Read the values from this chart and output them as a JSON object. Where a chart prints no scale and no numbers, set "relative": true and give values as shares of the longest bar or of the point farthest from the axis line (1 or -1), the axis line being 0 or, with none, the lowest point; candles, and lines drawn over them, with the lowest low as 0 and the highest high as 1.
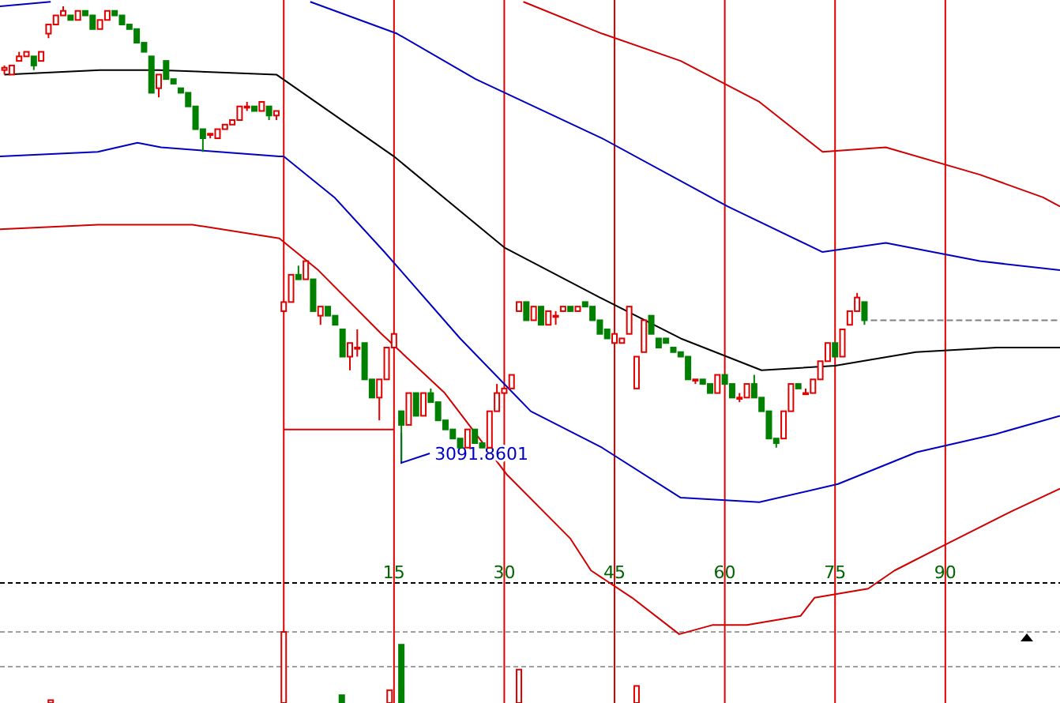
{
  "chart_data": [
    {
      "type": "candlestick",
      "relative": true,
      "xlim": [
        -38.6,
        105.6
      ],
      "xticks": [
        15,
        30,
        45,
        60,
        75,
        90
      ],
      "x": [
        -38,
        -37,
        -36,
        -35,
        -34,
        -33,
        -32,
        -31,
        -30,
        -29,
        -28,
        -27,
        -26,
        -25,
        -24,
        -23,
        -22,
        -21,
        -20,
        -19,
        -18,
        -17,
        -16,
        -15,
        -14,
        -13,
        -12,
        -11,
        -10,
        -9,
        -8,
        -7,
        -6,
        -5,
        -4,
        -3,
        -2,
        -1,
        0,
        1,
        2,
        3,
        4,
        5,
        6,
        7,
        8,
        9,
        10,
        11,
        12,
        13,
        14,
        15,
        16,
        17,
        18,
        19,
        20,
        21,
        22,
        23,
        24,
        25,
        26,
        27,
        28,
        29,
        30,
        31,
        32,
        33,
        34,
        35,
        36,
        37,
        38,
        39,
        40,
        41,
        42,
        43,
        44,
        45,
        46,
        47,
        48,
        49,
        50,
        51,
        52,
        53,
        54,
        55,
        56,
        57,
        58,
        59,
        60,
        61,
        62,
        63,
        64,
        65,
        66,
        67,
        68,
        69,
        70,
        71,
        72,
        73,
        74,
        75,
        76,
        77,
        78,
        79
      ],
      "ohlc": [
        [
          0.86,
          0.87,
          0.85,
          0.865
        ],
        [
          0.85,
          0.87,
          0.85,
          0.87
        ],
        [
          0.88,
          0.9,
          0.88,
          0.89
        ],
        [
          0.89,
          0.9,
          0.89,
          0.9
        ],
        [
          0.89,
          0.89,
          0.86,
          0.87
        ],
        [
          0.88,
          0.9,
          0.88,
          0.9
        ],
        [
          0.94,
          0.96,
          0.93,
          0.96
        ],
        [
          0.96,
          0.98,
          0.96,
          0.98
        ],
        [
          0.98,
          1.0,
          0.98,
          0.99
        ],
        [
          0.98,
          0.98,
          0.97,
          0.97
        ],
        [
          0.97,
          0.99,
          0.97,
          0.99
        ],
        [
          0.99,
          0.99,
          0.98,
          0.98
        ],
        [
          0.98,
          0.98,
          0.95,
          0.95
        ],
        [
          0.95,
          0.97,
          0.95,
          0.97
        ],
        [
          0.97,
          0.99,
          0.97,
          0.99
        ],
        [
          0.99,
          0.99,
          0.98,
          0.98
        ],
        [
          0.98,
          0.98,
          0.96,
          0.96
        ],
        [
          0.96,
          0.96,
          0.95,
          0.95
        ],
        [
          0.95,
          0.95,
          0.92,
          0.92
        ],
        [
          0.92,
          0.92,
          0.9,
          0.9
        ],
        [
          0.89,
          0.89,
          0.81,
          0.81
        ],
        [
          0.82,
          0.85,
          0.8,
          0.85
        ],
        [
          0.88,
          0.88,
          0.84,
          0.84
        ],
        [
          0.84,
          0.84,
          0.83,
          0.83
        ],
        [
          0.82,
          0.82,
          0.81,
          0.81
        ],
        [
          0.81,
          0.81,
          0.78,
          0.78
        ],
        [
          0.78,
          0.78,
          0.73,
          0.73
        ],
        [
          0.73,
          0.73,
          0.68,
          0.71
        ],
        [
          0.72,
          0.72,
          0.71,
          0.72
        ],
        [
          0.71,
          0.73,
          0.71,
          0.73
        ],
        [
          0.73,
          0.74,
          0.73,
          0.74
        ],
        [
          0.74,
          0.75,
          0.74,
          0.75
        ],
        [
          0.75,
          0.78,
          0.75,
          0.78
        ],
        [
          0.78,
          0.79,
          0.77,
          0.78
        ],
        [
          0.78,
          0.78,
          0.77,
          0.77
        ],
        [
          0.77,
          0.79,
          0.77,
          0.79
        ],
        [
          0.78,
          0.78,
          0.75,
          0.76
        ],
        [
          0.76,
          0.77,
          0.75,
          0.77
        ],
        [
          0.33,
          0.35,
          0.33,
          0.35
        ],
        [
          0.35,
          0.41,
          0.35,
          0.41
        ],
        [
          0.41,
          0.43,
          0.4,
          0.4
        ],
        [
          0.4,
          0.44,
          0.4,
          0.44
        ],
        [
          0.4,
          0.4,
          0.33,
          0.33
        ],
        [
          0.32,
          0.34,
          0.3,
          0.34
        ],
        [
          0.34,
          0.34,
          0.32,
          0.32
        ],
        [
          0.32,
          0.32,
          0.3,
          0.3
        ],
        [
          0.29,
          0.29,
          0.23,
          0.23
        ],
        [
          0.23,
          0.26,
          0.2,
          0.26
        ],
        [
          0.25,
          0.29,
          0.23,
          0.25
        ],
        [
          0.26,
          0.26,
          0.18,
          0.18
        ],
        [
          0.18,
          0.18,
          0.14,
          0.14
        ],
        [
          0.14,
          0.18,
          0.09,
          0.18
        ],
        [
          0.18,
          0.25,
          0.18,
          0.25
        ],
        [
          0.25,
          0.28,
          0.25,
          0.28
        ],
        [
          0.11,
          0.11,
          0,
          0.08
        ],
        [
          0.08,
          0.15,
          0.08,
          0.15
        ],
        [
          0.15,
          0.15,
          0.1,
          0.1
        ],
        [
          0.1,
          0.15,
          0.1,
          0.15
        ],
        [
          0.15,
          0.16,
          0.13,
          0.13
        ],
        [
          0.13,
          0.13,
          0.09,
          0.09
        ],
        [
          0.09,
          0.09,
          0.07,
          0.07
        ],
        [
          0.07,
          0.07,
          0.05,
          0.05
        ],
        [
          0.05,
          0.05,
          0.03,
          0.03
        ],
        [
          0.03,
          0.07,
          0.03,
          0.07
        ],
        [
          0.07,
          0.07,
          0.04,
          0.04
        ],
        [
          0.04,
          0.04,
          0.03,
          0.03
        ],
        [
          0.03,
          0.11,
          0.03,
          0.11
        ],
        [
          0.11,
          0.17,
          0.11,
          0.15
        ],
        [
          0.15,
          0.16,
          0.15,
          0.16
        ],
        [
          0.16,
          0.19,
          0.16,
          0.19
        ],
        [
          0.33,
          0.35,
          0.33,
          0.35
        ],
        [
          0.35,
          0.35,
          0.31,
          0.31
        ],
        [
          0.31,
          0.34,
          0.31,
          0.34
        ],
        [
          0.34,
          0.34,
          0.3,
          0.3
        ],
        [
          0.3,
          0.33,
          0.3,
          0.33
        ],
        [
          0.32,
          0.33,
          0.3,
          0.32
        ],
        [
          0.33,
          0.34,
          0.33,
          0.34
        ],
        [
          0.34,
          0.34,
          0.33,
          0.33
        ],
        [
          0.33,
          0.34,
          0.33,
          0.34
        ],
        [
          0.35,
          0.35,
          0.34,
          0.34
        ],
        [
          0.34,
          0.34,
          0.31,
          0.31
        ],
        [
          0.31,
          0.31,
          0.28,
          0.28
        ],
        [
          0.29,
          0.29,
          0.27,
          0.27
        ],
        [
          0.26,
          0.28,
          0.26,
          0.28
        ],
        [
          0.26,
          0.27,
          0.26,
          0.27
        ],
        [
          0.28,
          0.34,
          0.28,
          0.34
        ],
        [
          0.16,
          0.23,
          0.16,
          0.23
        ],
        [
          0.24,
          0.31,
          0.24,
          0.31
        ],
        [
          0.32,
          0.32,
          0.28,
          0.28
        ],
        [
          0.27,
          0.27,
          0.25,
          0.25
        ],
        [
          0.27,
          0.27,
          0.26,
          0.26
        ],
        [
          0.25,
          0.25,
          0.24,
          0.24
        ],
        [
          0.24,
          0.24,
          0.23,
          0.23
        ],
        [
          0.23,
          0.23,
          0.18,
          0.18
        ],
        [
          0.18,
          0.18,
          0.17,
          0.18
        ],
        [
          0.18,
          0.18,
          0.17,
          0.17
        ],
        [
          0.17,
          0.17,
          0.15,
          0.15
        ],
        [
          0.15,
          0.19,
          0.15,
          0.19
        ],
        [
          0.19,
          0.19,
          0.17,
          0.17
        ],
        [
          0.17,
          0.17,
          0.14,
          0.14
        ],
        [
          0.14,
          0.15,
          0.13,
          0.14
        ],
        [
          0.14,
          0.17,
          0.14,
          0.17
        ],
        [
          0.17,
          0.19,
          0.14,
          0.14
        ],
        [
          0.14,
          0.14,
          0.11,
          0.11
        ],
        [
          0.11,
          0.11,
          0.05,
          0.05
        ],
        [
          0.05,
          0.05,
          0.03,
          0.04
        ],
        [
          0.05,
          0.11,
          0.05,
          0.11
        ],
        [
          0.11,
          0.17,
          0.11,
          0.17
        ],
        [
          0.17,
          0.17,
          0.16,
          0.16
        ],
        [
          0.15,
          0.16,
          0.15,
          0.15
        ],
        [
          0.15,
          0.18,
          0.15,
          0.18
        ],
        [
          0.18,
          0.22,
          0.18,
          0.22
        ],
        [
          0.22,
          0.26,
          0.22,
          0.26
        ],
        [
          0.26,
          0.26,
          0.23,
          0.23
        ],
        [
          0.23,
          0.29,
          0.23,
          0.29
        ],
        [
          0.3,
          0.33,
          0.3,
          0.33
        ],
        [
          0.33,
          0.37,
          0.33,
          0.36
        ],
        [
          0.35,
          0.35,
          0.3,
          0.31
        ]
      ],
      "series": [
        {
          "type": "line",
          "color": "#000000",
          "x": [
            -38,
            -25,
            -17,
            -1,
            15,
            30,
            43,
            54,
            65,
            75,
            86,
            97,
            105.6
          ],
          "values": [
            0.85,
            0.86,
            0.86,
            0.85,
            0.67,
            0.47,
            0.36,
            0.27,
            0.2,
            0.21,
            0.24,
            0.25,
            0.25
          ]
        },
        {
          "type": "line",
          "color": "#0000c0",
          "x": [
            -38.6,
            -31.7,
            -31,
            3.6,
            15.4,
            26.1,
            43.3,
            60.4,
            73.3,
            81.9,
            94.7,
            105.6
          ],
          "values": [
            1.0,
            1.01,
            null,
            1.01,
            0.94,
            0.84,
            0.71,
            0.56,
            0.46,
            0.48,
            0.44,
            0.42
          ]
        },
        {
          "type": "line",
          "color": "#0000c0",
          "x": [
            -38.6,
            -25.3,
            -19.9,
            -16.7,
            -0.6,
            0,
            6.9,
            13.7,
            24,
            33.6,
            43.3,
            54,
            64.7,
            75.4,
            86.1,
            96.9,
            105.6
          ],
          "values": [
            0.67,
            0.68,
            0.7,
            0.69,
            0.67,
            0.67,
            0.58,
            0.46,
            0.27,
            0.11,
            0.03,
            -0.08,
            -0.09,
            -0.05,
            0.02,
            0.06,
            0.1
          ]
        },
        {
          "type": "line",
          "color": "#d00000",
          "x": [
            32.6,
            43.3,
            54,
            64.7,
            73.3,
            81.9,
            94.7,
            103.3,
            105.6
          ],
          "values": [
            1.01,
            0.94,
            0.88,
            0.79,
            0.68,
            0.69,
            0.63,
            0.58,
            0.56
          ]
        },
        {
          "type": "line",
          "color": "#d00000",
          "x": [
            -38.6,
            -25.3,
            -12.4,
            -0.6,
            4.7,
            13.3,
            21.9,
            30.4,
            39,
            41.8,
            47.4,
            53.8,
            58.3,
            63,
            70.3,
            72.2,
            79.5,
            83.1,
            90.4,
            99,
            105.6
          ],
          "values": [
            0.51,
            0.52,
            0.52,
            0.49,
            0.42,
            0.28,
            0.15,
            -0.03,
            -0.17,
            -0.24,
            -0.3,
            -0.38,
            -0.36,
            -0.36,
            -0.34,
            -0.3,
            -0.28,
            -0.24,
            -0.18,
            -0.11,
            -0.06
          ]
        },
        {
          "type": "line",
          "color": "#e00000",
          "x": [
            0,
            15
          ],
          "values": [
            0.07,
            0.07
          ]
        }
      ],
      "ref_lines": [
        {
          "axis": "y",
          "value": 0.31,
          "color": "#808080",
          "line_style": "dashed"
        },
        {
          "axis": "x",
          "value": 0,
          "color": "#e00000"
        },
        {
          "axis": "x",
          "value": 15,
          "color": "#e00000"
        },
        {
          "axis": "x",
          "value": 30,
          "color": "#e00000"
        },
        {
          "axis": "x",
          "value": 45,
          "color": "#e00000"
        },
        {
          "axis": "x",
          "value": 60,
          "color": "#e00000"
        },
        {
          "axis": "x",
          "value": 75,
          "color": "#e00000"
        },
        {
          "axis": "x",
          "value": 90,
          "color": "#e00000"
        }
      ],
      "annotations": [
        {
          "text": "3091.8601",
          "x": 16,
          "y": 0
        }
      ]
    },
    {
      "type": "bar",
      "relative": true,
      "xlim": [
        -38.6,
        105.6
      ],
      "ref_lines": [
        {
          "axis": "y",
          "value": 0.51,
          "color": "#a0a0a0",
          "line_style": "dashed"
        },
        {
          "axis": "x",
          "value": 0,
          "color": "#e00000"
        },
        {
          "axis": "x",
          "value": 15,
          "color": "#e00000"
        },
        {
          "axis": "x",
          "value": 30,
          "color": "#e00000"
        },
        {
          "axis": "x",
          "value": 45,
          "color": "#e00000"
        },
        {
          "axis": "x",
          "value": 60,
          "color": "#e00000"
        },
        {
          "axis": "x",
          "value": 75,
          "color": "#e00000"
        },
        {
          "axis": "x",
          "value": 90,
          "color": "#e00000"
        }
      ],
      "x": [
        -31.7,
        0,
        7.9,
        14.4,
        16,
        32,
        48
      ],
      "values": [
        0.04,
        1,
        0.11,
        0.18,
        0.82,
        0.47,
        0.24
      ],
      "colors": [
        "#e00000",
        "#e00000",
        "#008000",
        "#e00000",
        "#008000",
        "#e00000",
        "#e00000"
      ]
    }
  ]
}
